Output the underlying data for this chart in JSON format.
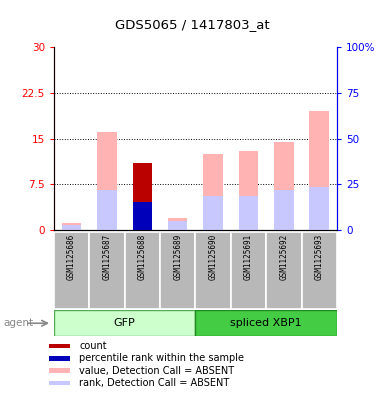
{
  "title": "GDS5065 / 1417803_at",
  "samples": [
    "GSM1125686",
    "GSM1125687",
    "GSM1125688",
    "GSM1125689",
    "GSM1125690",
    "GSM1125691",
    "GSM1125692",
    "GSM1125693"
  ],
  "count_values": [
    0,
    0,
    11,
    0,
    0,
    0,
    0,
    0
  ],
  "percentile_rank_values": [
    0,
    0,
    4.5,
    0,
    0,
    0,
    0,
    0
  ],
  "absent_value_values": [
    1.2,
    16.0,
    4.5,
    2.0,
    12.5,
    13.0,
    14.5,
    19.5
  ],
  "absent_rank_values": [
    0.8,
    6.5,
    0,
    1.5,
    5.5,
    5.5,
    6.5,
    7.0
  ],
  "ylim_left": [
    0,
    30
  ],
  "ylim_right": [
    0,
    100
  ],
  "yticks_left": [
    0,
    7.5,
    15,
    22.5,
    30
  ],
  "yticks_right": [
    0,
    25,
    50,
    75,
    100
  ],
  "ytick_labels_left": [
    "0",
    "7.5",
    "15",
    "22.5",
    "30"
  ],
  "ytick_labels_right": [
    "0",
    "25",
    "50",
    "75",
    "100%"
  ],
  "color_count": "#bb0000",
  "color_percentile": "#0000bb",
  "color_absent_value": "#ffb3b3",
  "color_absent_rank": "#c8c8ff",
  "legend_items": [
    {
      "color": "#bb0000",
      "label": "count"
    },
    {
      "color": "#0000bb",
      "label": "percentile rank within the sample"
    },
    {
      "color": "#ffb3b3",
      "label": "value, Detection Call = ABSENT"
    },
    {
      "color": "#c8c8ff",
      "label": "rank, Detection Call = ABSENT"
    }
  ],
  "group_label_gfp": "GFP",
  "group_label_xbp1": "spliced XBP1",
  "group_bg_light": "#ccffcc",
  "group_bg_dark": "#44cc44",
  "sample_bg_color": "#b8b8b8",
  "bar_width": 0.55,
  "fig_width": 3.85,
  "fig_height": 3.93,
  "dpi": 100
}
